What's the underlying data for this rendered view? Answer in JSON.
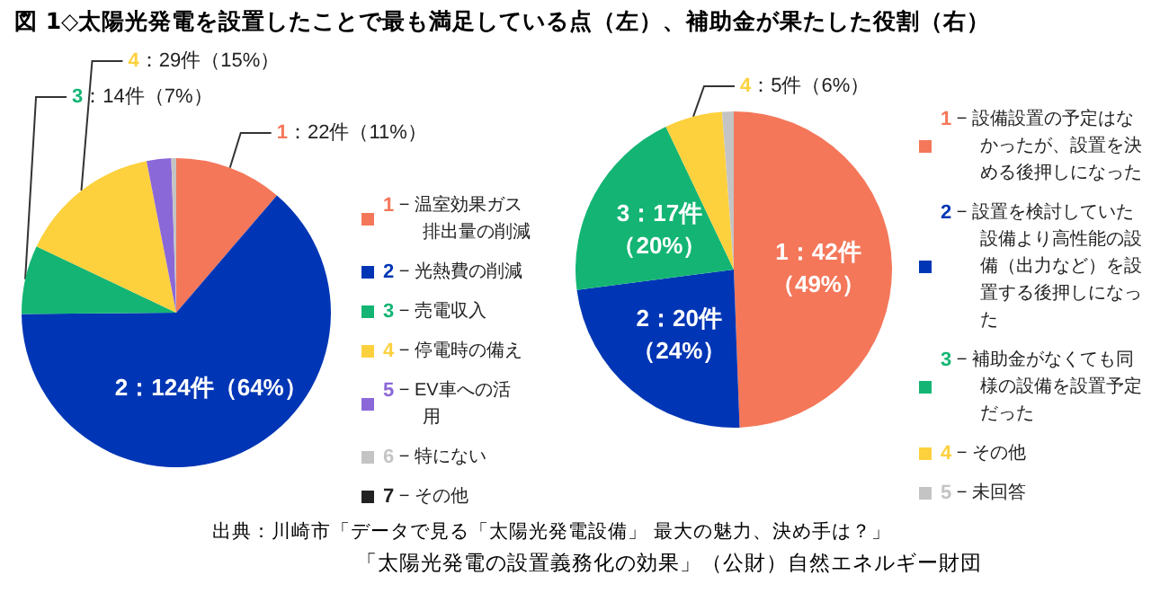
{
  "chart_data": [
    {
      "type": "pie",
      "title": "図 1◇太陽光発電を設置したことで最も満足している点（左）、補助金が果たした役割（右）",
      "categories": [
        "1 − 温室効果ガス排出量の削減",
        "2 − 光熱費の削減",
        "3 − 売電収入",
        "4 − 停電時の備え",
        "5 − EV車への活用",
        "6 − 特にない",
        "7 − その他"
      ],
      "values": [
        22,
        124,
        14,
        29,
        5,
        1,
        0
      ],
      "colors": [
        "#f4775a",
        "#0036b5",
        "#14b574",
        "#fdd13e",
        "#8b68d8",
        "#c4c4c4",
        "#222222"
      ],
      "value_labels": [
        "1：22件（11%）",
        "2：124件（64%）",
        "3：14件（7%）",
        "4：29件（15%）",
        null,
        null,
        null
      ],
      "legend": "right",
      "annotations": [
        "出典：川崎市「データで見る「太陽光発電設備」 最大の魅力、決め手は？」",
        "「太陽光発電の設置義務化の効果」（公財）自然エネルギー財団"
      ]
    },
    {
      "type": "pie",
      "categories": [
        "1 − 設備設置の予定はなかったが、設置を決める後押しになった",
        "2 − 設置を検討していた設備より高性能の設備（出力など）を設置する後押しになった",
        "3 − 補助金がなくても同様の設備を設置予定だった",
        "4 − その他",
        "5 − 未回答"
      ],
      "values": [
        42,
        20,
        17,
        5,
        1
      ],
      "colors": [
        "#f4775a",
        "#0036b5",
        "#14b574",
        "#fdd13e",
        "#c4c4c4"
      ],
      "value_labels": [
        "1：42件（49%）",
        "2：20件（24%）",
        "3：17件（20%）",
        "4：5件（6%）",
        null
      ],
      "legend": "right"
    }
  ]
}
